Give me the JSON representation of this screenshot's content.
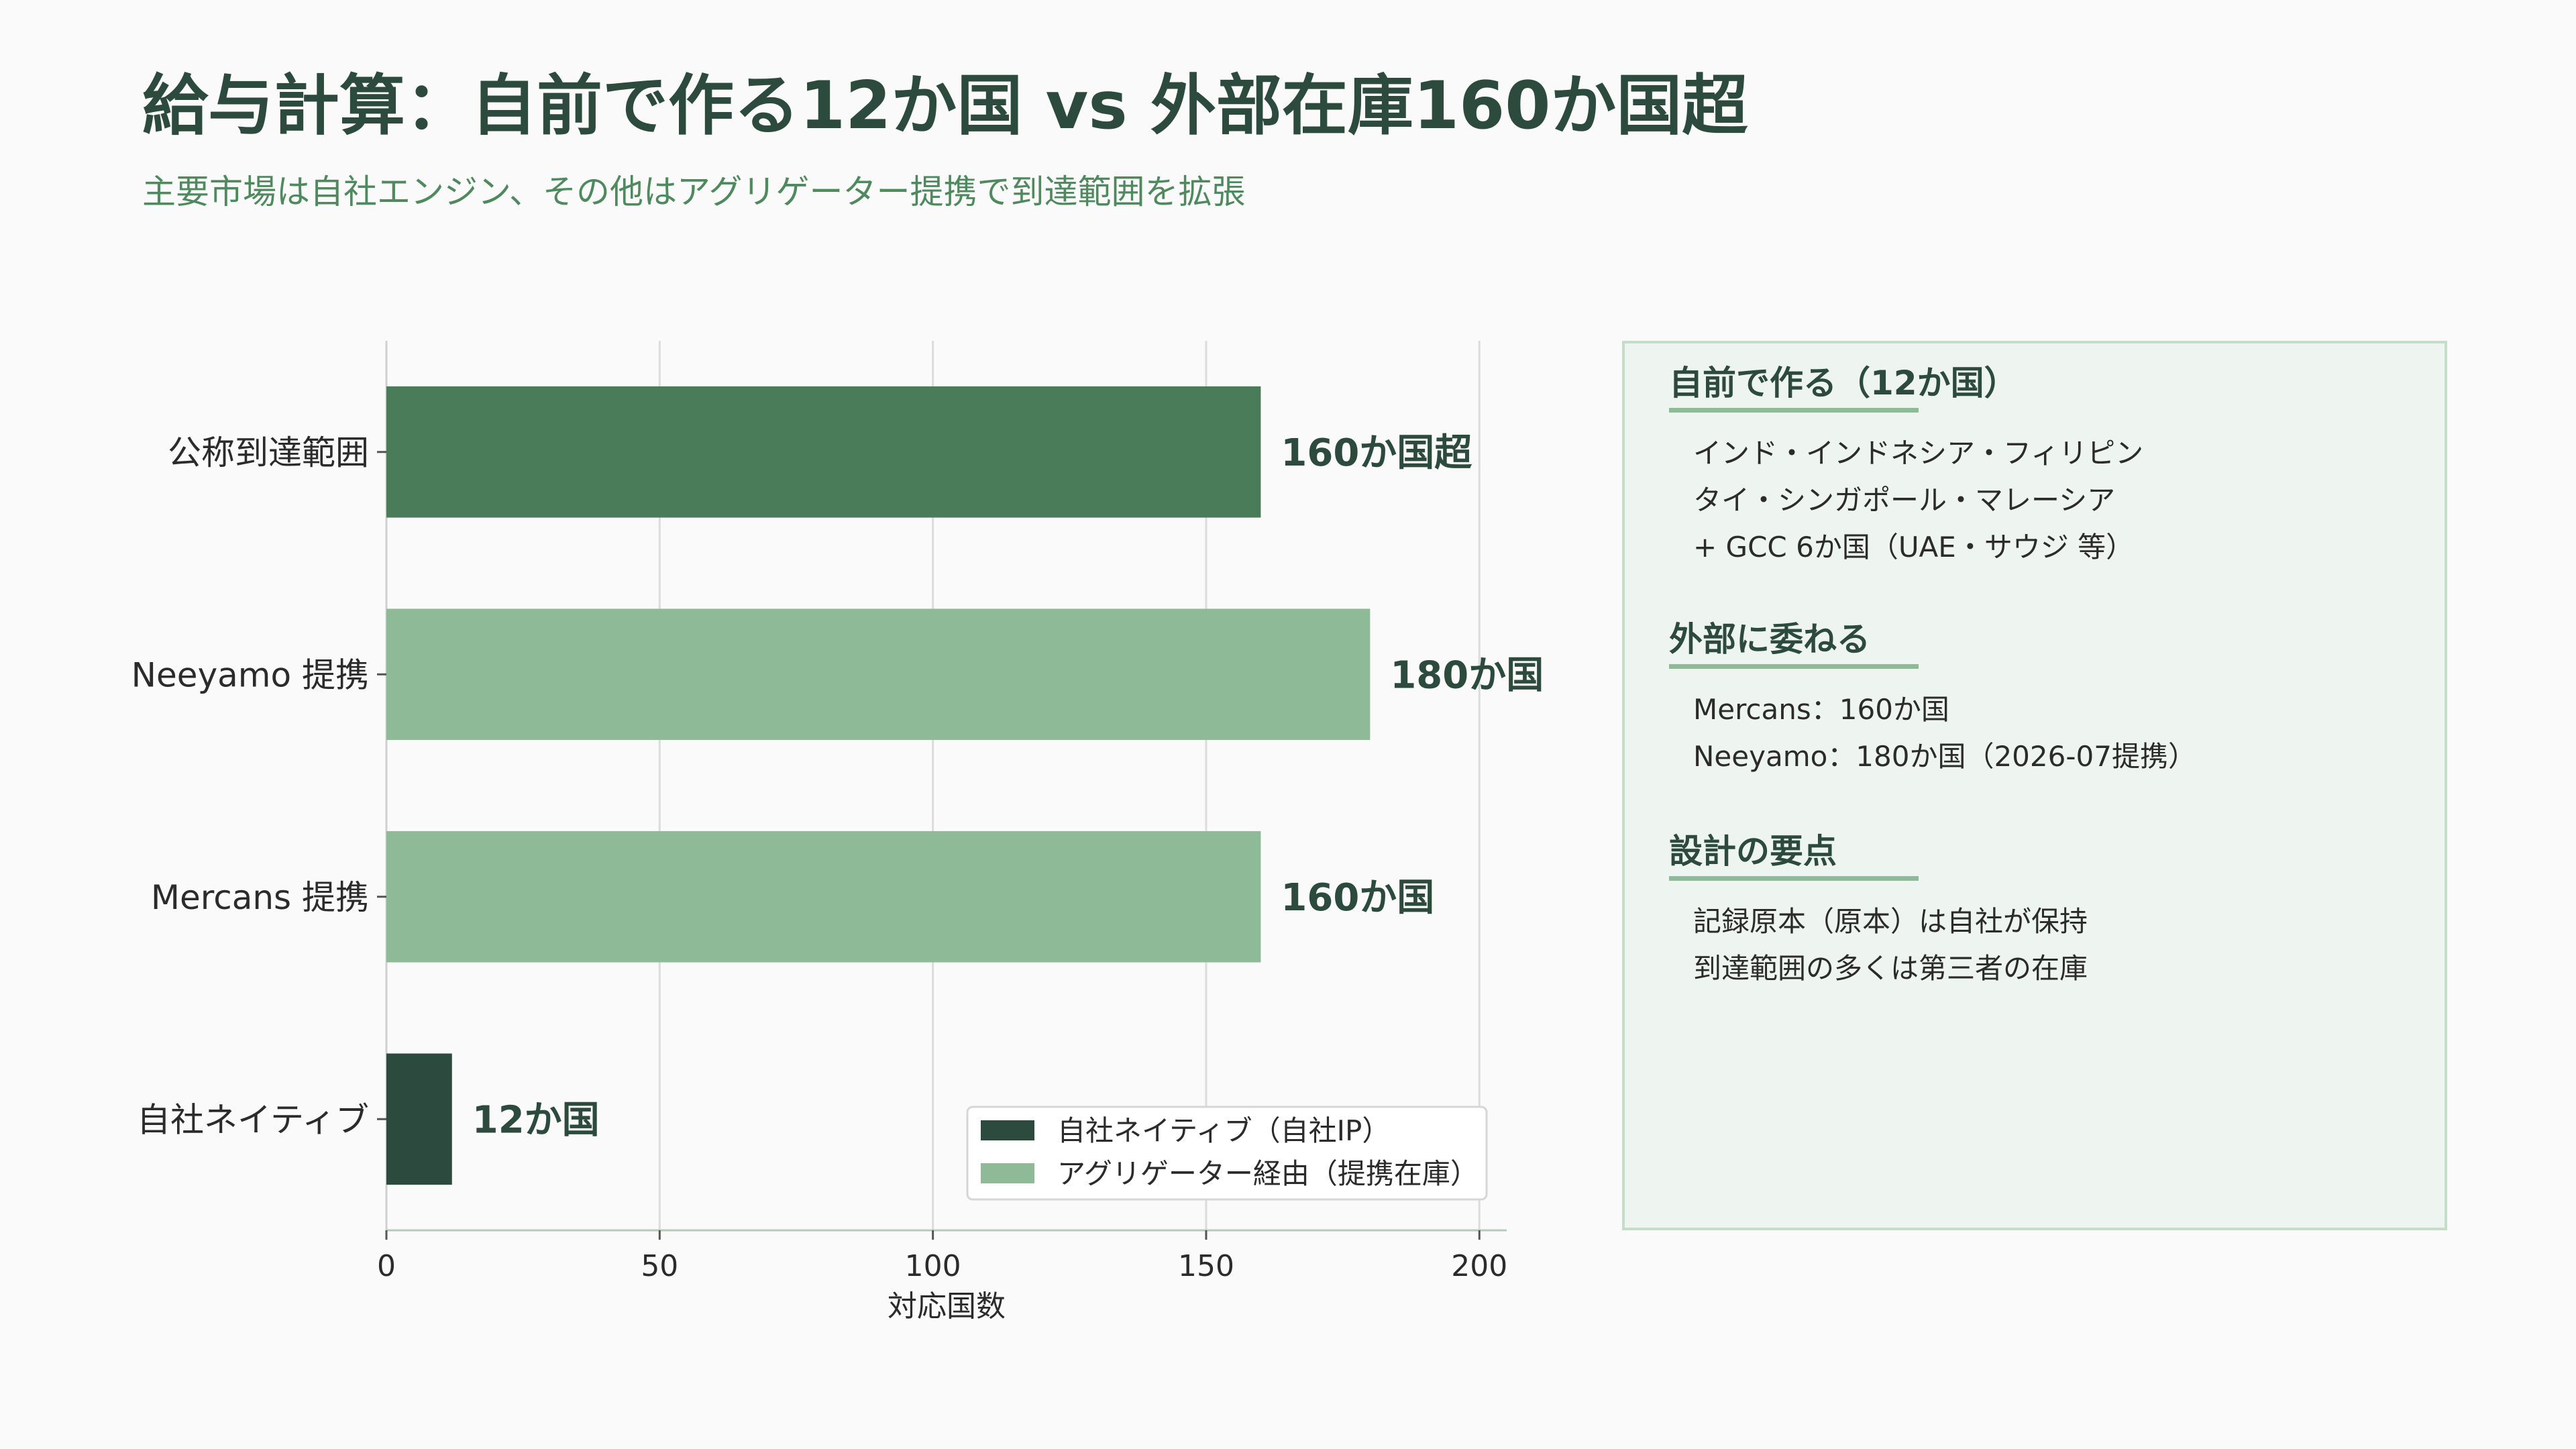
{
  "title": "給与計算：自前で作る12か国 vs 外部在庫160か国超",
  "subtitle": "主要市場は自社エンジン、その他はアグリゲーター提携で到達範囲を拡張",
  "chart_data": {
    "type": "bar",
    "orientation": "horizontal",
    "categories": [
      "公称到達範囲",
      "Neeyamo 提携",
      "Mercans 提携",
      "自社ネイティブ"
    ],
    "values": [
      160,
      180,
      160,
      12
    ],
    "value_labels": [
      "160か国超",
      "180か国",
      "160か国",
      "12か国"
    ],
    "bar_colors": [
      "#4a7c59",
      "#8fba98",
      "#8fba98",
      "#2d4a3e"
    ],
    "xlabel": "対応国数",
    "xlim": [
      0,
      205
    ],
    "xticks": [
      0,
      50,
      100,
      150,
      200
    ],
    "grid": true,
    "legend_position": "lower-right",
    "legend": [
      {
        "label": "自社ネイティブ（自社IP）",
        "color": "#2d4a3e"
      },
      {
        "label": "アグリゲーター経由（提携在庫）",
        "color": "#8fba98"
      }
    ]
  },
  "side_panel": {
    "sections": [
      {
        "title": "自前で作る（12か国）",
        "lines": [
          "インド・インドネシア・フィリピン",
          "タイ・シンガポール・マレーシア",
          "+ GCC 6か国（UAE・サウジ 等）"
        ]
      },
      {
        "title": "外部に委ねる",
        "lines": [
          "Mercans：160か国",
          "Neeyamo：180か国（2026-07提携）"
        ]
      },
      {
        "title": "設計の要点",
        "lines": [
          "記録原本（原本）は自社が保持",
          "到達範囲の多くは第三者の在庫"
        ]
      }
    ]
  }
}
